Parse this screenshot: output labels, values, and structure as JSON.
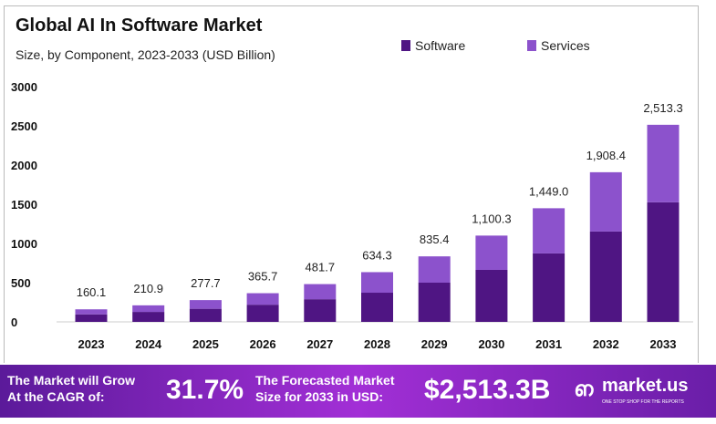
{
  "chart_data": {
    "type": "bar",
    "stacked": true,
    "title": "Global AI In Software Market",
    "subtitle": "Size, by Component, 2023-2033 (USD Billion)",
    "categories": [
      "2023",
      "2024",
      "2025",
      "2026",
      "2027",
      "2028",
      "2029",
      "2030",
      "2031",
      "2032",
      "2033"
    ],
    "series": [
      {
        "name": "Software",
        "color": "#4f1583",
        "values": [
          96,
          127,
          167,
          219,
          289,
          372,
          500,
          663,
          873,
          1152,
          1525
        ]
      },
      {
        "name": "Services",
        "color": "#8c52cc",
        "values": [
          64.1,
          83.9,
          110.7,
          146.7,
          192.7,
          262.3,
          335.4,
          437.3,
          576.0,
          756.4,
          988.3
        ]
      }
    ],
    "totals": [
      "160.1",
      "210.9",
      "277.7",
      "365.7",
      "481.7",
      "634.3",
      "835.4",
      "1,100.3",
      "1,449.0",
      "1,908.4",
      "2,513.3"
    ],
    "yticks": [
      "0",
      "500",
      "1000",
      "1500",
      "2000",
      "2500",
      "3000"
    ],
    "ylim": [
      0,
      3000
    ],
    "grid": false,
    "legend": "top-right"
  },
  "banner": {
    "cagr_label_1": "The Market will Grow",
    "cagr_label_2": "At the CAGR of:",
    "cagr_value": "31.7%",
    "forecast_label_1": "The Forecasted Market",
    "forecast_label_2": "Size for 2033 in USD:",
    "forecast_value": "$2,513.3B",
    "logo_text": "market.us",
    "logo_tagline": "ONE STOP SHOP FOR THE REPORTS"
  }
}
